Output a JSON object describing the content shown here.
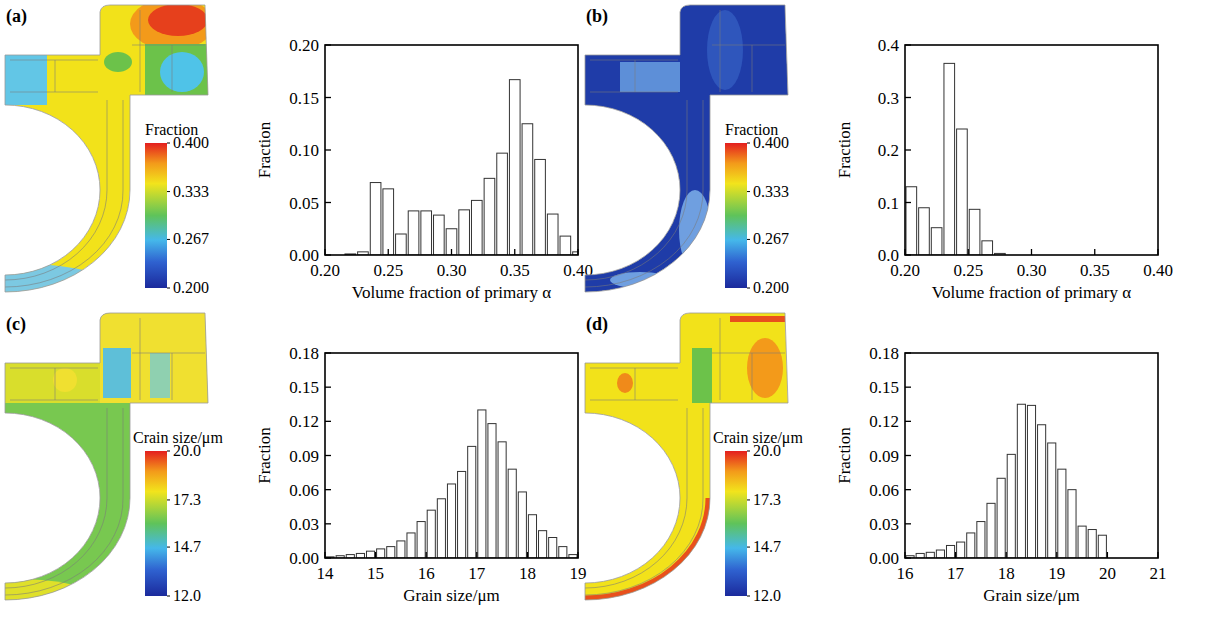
{
  "chart_data": [
    {
      "type": "histogram",
      "panel_label": "(a)",
      "x_label": "Volume fraction of primary α",
      "y_label": "Fraction",
      "bins": [
        0.215,
        0.225,
        0.235,
        0.245,
        0.255,
        0.265,
        0.275,
        0.285,
        0.295,
        0.305,
        0.315,
        0.325,
        0.335,
        0.345,
        0.355,
        0.365,
        0.375,
        0.385,
        0.395,
        0.405
      ],
      "values": [
        0.001,
        0.003,
        0.069,
        0.063,
        0.02,
        0.042,
        0.042,
        0.038,
        0.025,
        0.043,
        0.052,
        0.073,
        0.097,
        0.167,
        0.125,
        0.091,
        0.039,
        0.018,
        0.003
      ],
      "color": "#ffffff",
      "xlim": [
        0.2,
        0.4
      ],
      "xticks": [
        {
          "value": 0.2,
          "label": "0.20"
        },
        0.25,
        {
          "value": 0.3,
          "label": "0.30"
        },
        0.35,
        {
          "value": 0.4,
          "label": "0.40"
        }
      ],
      "ylim": [
        0,
        0.2
      ],
      "yticks": [
        {
          "value": 0,
          "label": "0.00"
        },
        0.05,
        {
          "value": 0.1,
          "label": "0.10"
        },
        0.15,
        {
          "value": 0.2,
          "label": "0.20"
        }
      ],
      "colorbar": {
        "title": "Fraction",
        "range": [
          0.2,
          0.4
        ],
        "ticks": [
          {
            "value": 0.4,
            "label": "0.400"
          },
          0.333,
          0.267,
          {
            "value": 0.2,
            "label": "0.200"
          }
        ]
      }
    },
    {
      "type": "histogram",
      "panel_label": "(b)",
      "x_label": "Volume fraction of primary α",
      "y_label": "Fraction",
      "bins": [
        0.2,
        0.21,
        0.22,
        0.23,
        0.24,
        0.25,
        0.26,
        0.27,
        0.28
      ],
      "values": [
        0.13,
        0.09,
        0.052,
        0.365,
        0.24,
        0.087,
        0.027,
        0.003
      ],
      "color": "#ffffff",
      "xlim": [
        0.2,
        0.4
      ],
      "xticks": [
        {
          "value": 0.2,
          "label": "0.20"
        },
        0.25,
        {
          "value": 0.3,
          "label": "0.30"
        },
        0.35,
        {
          "value": 0.4,
          "label": "0.40"
        }
      ],
      "ylim": [
        0,
        0.4
      ],
      "yticks": [
        {
          "value": 0,
          "label": "0.0"
        },
        0.1,
        0.2,
        0.3,
        0.4
      ],
      "colorbar": {
        "title": "Fraction",
        "range": [
          0.2,
          0.4
        ],
        "ticks": [
          {
            "value": 0.4,
            "label": "0.400"
          },
          0.333,
          0.267,
          {
            "value": 0.2,
            "label": "0.200"
          }
        ]
      }
    },
    {
      "type": "histogram",
      "panel_label": "(c)",
      "x_label": "Grain size/μm",
      "y_label": "Fraction",
      "bins": [
        14,
        14.2,
        14.4,
        14.6,
        14.8,
        15,
        15.2,
        15.4,
        15.6,
        15.8,
        16,
        16.2,
        16.4,
        16.6,
        16.8,
        17,
        17.2,
        17.4,
        17.6,
        17.8,
        18,
        18.2,
        18.4,
        18.6,
        18.8,
        19
      ],
      "values": [
        0.001,
        0.002,
        0.003,
        0.004,
        0.006,
        0.008,
        0.01,
        0.015,
        0.022,
        0.032,
        0.042,
        0.052,
        0.065,
        0.076,
        0.098,
        0.13,
        0.118,
        0.102,
        0.078,
        0.058,
        0.038,
        0.024,
        0.018,
        0.01,
        0.003
      ],
      "color": "#ffffff",
      "xlim": [
        14,
        19
      ],
      "xticks": [
        14,
        15,
        16,
        17,
        18,
        19
      ],
      "ylim": [
        0,
        0.18
      ],
      "yticks": [
        {
          "value": 0,
          "label": "0.00"
        },
        0.03,
        0.06,
        0.09,
        0.12,
        0.15,
        0.18
      ],
      "colorbar": {
        "title": "Crain size/μm",
        "range": [
          12,
          20
        ],
        "ticks": [
          {
            "value": 20,
            "label": "20.0"
          },
          17.3,
          14.7,
          {
            "value": 12,
            "label": "12.0"
          }
        ]
      }
    },
    {
      "type": "histogram",
      "panel_label": "(d)",
      "x_label": "Grain size/μm",
      "y_label": "Fraction",
      "bins": [
        16,
        16.2,
        16.4,
        16.6,
        16.8,
        17,
        17.2,
        17.4,
        17.6,
        17.8,
        18,
        18.2,
        18.4,
        18.6,
        18.8,
        19,
        19.2,
        19.4,
        19.6,
        19.8,
        20
      ],
      "values": [
        0.002,
        0.004,
        0.005,
        0.007,
        0.011,
        0.014,
        0.022,
        0.032,
        0.048,
        0.07,
        0.091,
        0.135,
        0.134,
        0.117,
        0.101,
        0.078,
        0.06,
        0.028,
        0.025,
        0.02
      ],
      "color": "#ffffff",
      "xlim": [
        16,
        21
      ],
      "xticks": [
        16,
        17,
        18,
        19,
        20,
        21
      ],
      "ylim": [
        0,
        0.18
      ],
      "yticks": [
        {
          "value": 0,
          "label": "0.00"
        },
        0.03,
        0.06,
        0.09,
        0.12,
        0.15,
        0.18
      ],
      "colorbar": {
        "title": "Crain size/μm",
        "range": [
          12,
          20
        ],
        "ticks": [
          {
            "value": 20,
            "label": "20.0"
          },
          17.3,
          14.7,
          {
            "value": 12,
            "label": "12.0"
          }
        ]
      }
    }
  ]
}
